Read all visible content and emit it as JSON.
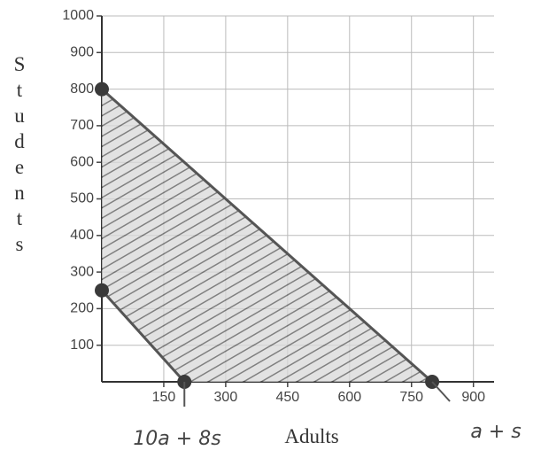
{
  "chart_data": {
    "type": "line",
    "xlabel": "Adults",
    "ylabel": "Students",
    "annotations": [
      "10a + 8s",
      "a + s"
    ],
    "series": [
      {
        "name": "10a + 8s",
        "color": "#555555",
        "x": [
          0,
          200
        ],
        "values": [
          250,
          0
        ]
      },
      {
        "name": "a + s",
        "color": "#555555",
        "x": [
          0,
          800
        ],
        "values": [
          800,
          0
        ]
      }
    ],
    "xlim": [
      0,
      950
    ],
    "ylim": [
      0,
      1000
    ],
    "xticks": [
      150,
      300,
      450,
      600,
      750,
      900
    ],
    "yticks": [
      100,
      200,
      300,
      400,
      500,
      600,
      700,
      800,
      900,
      1000
    ],
    "grid": true
  }
}
